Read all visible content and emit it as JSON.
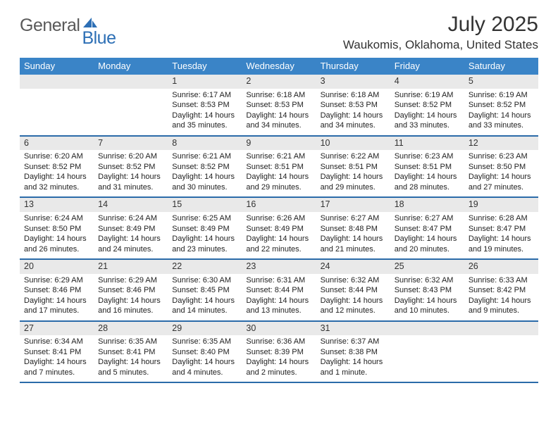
{
  "logo": {
    "text1": "General",
    "text2": "Blue"
  },
  "title": "July 2025",
  "location": "Waukomis, Oklahoma, United States",
  "colors": {
    "header_bg": "#3a84c7",
    "week_border": "#2b6ba9",
    "daynum_bg": "#e9e9e9",
    "text": "#333333",
    "logo_gray": "#5a5a5a",
    "logo_blue": "#2d6fb5"
  },
  "weekdays": [
    "Sunday",
    "Monday",
    "Tuesday",
    "Wednesday",
    "Thursday",
    "Friday",
    "Saturday"
  ],
  "weeks": [
    [
      null,
      null,
      {
        "n": "1",
        "sr": "6:17 AM",
        "ss": "8:53 PM",
        "dl": "14 hours and 35 minutes."
      },
      {
        "n": "2",
        "sr": "6:18 AM",
        "ss": "8:53 PM",
        "dl": "14 hours and 34 minutes."
      },
      {
        "n": "3",
        "sr": "6:18 AM",
        "ss": "8:53 PM",
        "dl": "14 hours and 34 minutes."
      },
      {
        "n": "4",
        "sr": "6:19 AM",
        "ss": "8:52 PM",
        "dl": "14 hours and 33 minutes."
      },
      {
        "n": "5",
        "sr": "6:19 AM",
        "ss": "8:52 PM",
        "dl": "14 hours and 33 minutes."
      }
    ],
    [
      {
        "n": "6",
        "sr": "6:20 AM",
        "ss": "8:52 PM",
        "dl": "14 hours and 32 minutes."
      },
      {
        "n": "7",
        "sr": "6:20 AM",
        "ss": "8:52 PM",
        "dl": "14 hours and 31 minutes."
      },
      {
        "n": "8",
        "sr": "6:21 AM",
        "ss": "8:52 PM",
        "dl": "14 hours and 30 minutes."
      },
      {
        "n": "9",
        "sr": "6:21 AM",
        "ss": "8:51 PM",
        "dl": "14 hours and 29 minutes."
      },
      {
        "n": "10",
        "sr": "6:22 AM",
        "ss": "8:51 PM",
        "dl": "14 hours and 29 minutes."
      },
      {
        "n": "11",
        "sr": "6:23 AM",
        "ss": "8:51 PM",
        "dl": "14 hours and 28 minutes."
      },
      {
        "n": "12",
        "sr": "6:23 AM",
        "ss": "8:50 PM",
        "dl": "14 hours and 27 minutes."
      }
    ],
    [
      {
        "n": "13",
        "sr": "6:24 AM",
        "ss": "8:50 PM",
        "dl": "14 hours and 26 minutes."
      },
      {
        "n": "14",
        "sr": "6:24 AM",
        "ss": "8:49 PM",
        "dl": "14 hours and 24 minutes."
      },
      {
        "n": "15",
        "sr": "6:25 AM",
        "ss": "8:49 PM",
        "dl": "14 hours and 23 minutes."
      },
      {
        "n": "16",
        "sr": "6:26 AM",
        "ss": "8:49 PM",
        "dl": "14 hours and 22 minutes."
      },
      {
        "n": "17",
        "sr": "6:27 AM",
        "ss": "8:48 PM",
        "dl": "14 hours and 21 minutes."
      },
      {
        "n": "18",
        "sr": "6:27 AM",
        "ss": "8:47 PM",
        "dl": "14 hours and 20 minutes."
      },
      {
        "n": "19",
        "sr": "6:28 AM",
        "ss": "8:47 PM",
        "dl": "14 hours and 19 minutes."
      }
    ],
    [
      {
        "n": "20",
        "sr": "6:29 AM",
        "ss": "8:46 PM",
        "dl": "14 hours and 17 minutes."
      },
      {
        "n": "21",
        "sr": "6:29 AM",
        "ss": "8:46 PM",
        "dl": "14 hours and 16 minutes."
      },
      {
        "n": "22",
        "sr": "6:30 AM",
        "ss": "8:45 PM",
        "dl": "14 hours and 14 minutes."
      },
      {
        "n": "23",
        "sr": "6:31 AM",
        "ss": "8:44 PM",
        "dl": "14 hours and 13 minutes."
      },
      {
        "n": "24",
        "sr": "6:32 AM",
        "ss": "8:44 PM",
        "dl": "14 hours and 12 minutes."
      },
      {
        "n": "25",
        "sr": "6:32 AM",
        "ss": "8:43 PM",
        "dl": "14 hours and 10 minutes."
      },
      {
        "n": "26",
        "sr": "6:33 AM",
        "ss": "8:42 PM",
        "dl": "14 hours and 9 minutes."
      }
    ],
    [
      {
        "n": "27",
        "sr": "6:34 AM",
        "ss": "8:41 PM",
        "dl": "14 hours and 7 minutes."
      },
      {
        "n": "28",
        "sr": "6:35 AM",
        "ss": "8:41 PM",
        "dl": "14 hours and 5 minutes."
      },
      {
        "n": "29",
        "sr": "6:35 AM",
        "ss": "8:40 PM",
        "dl": "14 hours and 4 minutes."
      },
      {
        "n": "30",
        "sr": "6:36 AM",
        "ss": "8:39 PM",
        "dl": "14 hours and 2 minutes."
      },
      {
        "n": "31",
        "sr": "6:37 AM",
        "ss": "8:38 PM",
        "dl": "14 hours and 1 minute."
      },
      null,
      null
    ]
  ],
  "labels": {
    "sunrise": "Sunrise: ",
    "sunset": "Sunset: ",
    "daylight": "Daylight: "
  }
}
